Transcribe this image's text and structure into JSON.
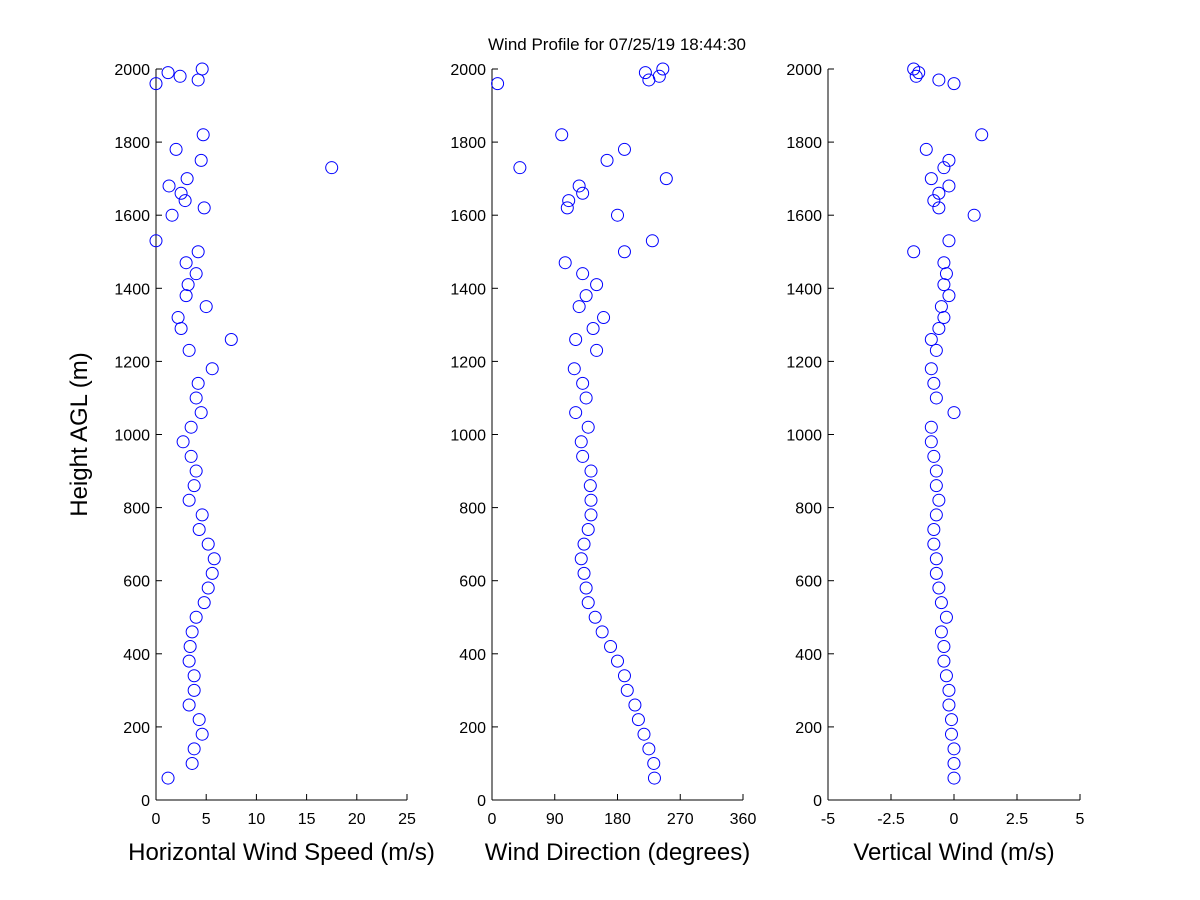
{
  "chart_data": [
    {
      "type": "scatter",
      "title": "Wind Profile for  07/25/19 18:44:30",
      "x_label": "Horizontal Wind Speed (m/s)",
      "y_label": "Height AGL (m)",
      "xlim": [
        0,
        25
      ],
      "xticks": [
        0,
        5,
        10,
        15,
        20,
        25
      ],
      "ylim": [
        0,
        2000
      ],
      "yticks": [
        0,
        200,
        400,
        600,
        800,
        1000,
        1200,
        1400,
        1600,
        1800,
        2000
      ],
      "series": [
        {
          "color": "#0000ff",
          "x": [
            1.2,
            3.6,
            3.8,
            4.6,
            4.3,
            3.3,
            3.8,
            3.8,
            3.3,
            3.4,
            3.6,
            4,
            4.8,
            5.2,
            5.6,
            5.8,
            5.2,
            4.3,
            4.6,
            3.3,
            3.8,
            4,
            3.5,
            2.7,
            3.5,
            4.5,
            4,
            4.2,
            5.6,
            3.3,
            7.5,
            2.5,
            2.2,
            5,
            3,
            3.2,
            4,
            3,
            4.2,
            0,
            1.6,
            4.8,
            2.9,
            2.5,
            1.3,
            3.1,
            17.5,
            4.5,
            2,
            4.7,
            0,
            4.2,
            2.4,
            1.2,
            4.6
          ],
          "y": [
            60,
            100,
            140,
            180,
            220,
            260,
            300,
            340,
            380,
            420,
            460,
            500,
            540,
            580,
            620,
            660,
            700,
            740,
            780,
            820,
            860,
            900,
            940,
            980,
            1020,
            1060,
            1100,
            1140,
            1180,
            1230,
            1260,
            1290,
            1320,
            1350,
            1380,
            1410,
            1440,
            1470,
            1500,
            1530,
            1600,
            1620,
            1640,
            1660,
            1680,
            1700,
            1730,
            1750,
            1780,
            1820,
            1960,
            1970,
            1980,
            1990,
            2000
          ]
        }
      ]
    },
    {
      "type": "scatter",
      "x_label": "Wind Direction (degrees)",
      "xlim": [
        0,
        360
      ],
      "xticks": [
        0,
        90,
        180,
        270,
        360
      ],
      "ylim": [
        0,
        2000
      ],
      "yticks": [
        0,
        200,
        400,
        600,
        800,
        1000,
        1200,
        1400,
        1600,
        1800,
        2000
      ],
      "series": [
        {
          "color": "#0000ff",
          "x": [
            233,
            232,
            225,
            218,
            210,
            205,
            194,
            190,
            180,
            170,
            158,
            148,
            138,
            135,
            132,
            128,
            132,
            138,
            142,
            142,
            141,
            142,
            130,
            128,
            138,
            120,
            135,
            130,
            118,
            150,
            120,
            145,
            160,
            125,
            135,
            150,
            130,
            105,
            190,
            230,
            180,
            108,
            110,
            130,
            125,
            250,
            40,
            165,
            190,
            100,
            8,
            225,
            240,
            220,
            245
          ],
          "y": [
            60,
            100,
            140,
            180,
            220,
            260,
            300,
            340,
            380,
            420,
            460,
            500,
            540,
            580,
            620,
            660,
            700,
            740,
            780,
            820,
            860,
            900,
            940,
            980,
            1020,
            1060,
            1100,
            1140,
            1180,
            1230,
            1260,
            1290,
            1320,
            1350,
            1380,
            1410,
            1440,
            1470,
            1500,
            1530,
            1600,
            1620,
            1640,
            1660,
            1680,
            1700,
            1730,
            1750,
            1780,
            1820,
            1960,
            1970,
            1980,
            1990,
            2000
          ]
        }
      ]
    },
    {
      "type": "scatter",
      "x_label": "Vertical Wind (m/s)",
      "xlim": [
        -5,
        5
      ],
      "xticks": [
        -5,
        -2.5,
        0,
        2.5,
        5
      ],
      "ylim": [
        0,
        2000
      ],
      "yticks": [
        0,
        200,
        400,
        600,
        800,
        1000,
        1200,
        1400,
        1600,
        1800,
        2000
      ],
      "series": [
        {
          "color": "#0000ff",
          "x": [
            0,
            0,
            0,
            -0.1,
            -0.1,
            -0.2,
            -0.2,
            -0.3,
            -0.4,
            -0.4,
            -0.5,
            -0.3,
            -0.5,
            -0.6,
            -0.7,
            -0.7,
            -0.8,
            -0.8,
            -0.7,
            -0.6,
            -0.7,
            -0.7,
            -0.8,
            -0.9,
            -0.9,
            0,
            -0.7,
            -0.8,
            -0.9,
            -0.7,
            -0.9,
            -0.6,
            -0.4,
            -0.5,
            -0.2,
            -0.4,
            -0.3,
            -0.4,
            -1.6,
            -0.2,
            0.8,
            -0.6,
            -0.8,
            -0.6,
            -0.2,
            -0.9,
            -0.4,
            -0.2,
            -1.1,
            1.1,
            0,
            -0.6,
            -1.5,
            -1.4,
            -1.6
          ],
          "y": [
            60,
            100,
            140,
            180,
            220,
            260,
            300,
            340,
            380,
            420,
            460,
            500,
            540,
            580,
            620,
            660,
            700,
            740,
            780,
            820,
            860,
            900,
            940,
            980,
            1020,
            1060,
            1100,
            1140,
            1180,
            1230,
            1260,
            1290,
            1320,
            1350,
            1380,
            1410,
            1440,
            1470,
            1500,
            1530,
            1600,
            1620,
            1640,
            1660,
            1680,
            1700,
            1730,
            1750,
            1780,
            1820,
            1960,
            1970,
            1980,
            1990,
            2000
          ]
        }
      ]
    }
  ]
}
